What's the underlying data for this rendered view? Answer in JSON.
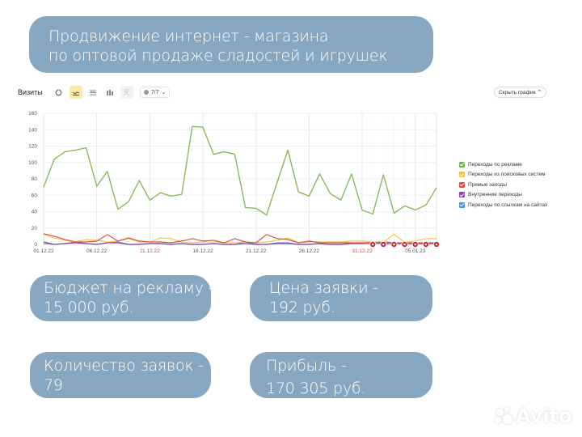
{
  "title": {
    "line1": "Продвижение интернет - магазина",
    "line2": "по оптовой продаже сладостей и игрушек"
  },
  "toolbar": {
    "label": "Визиты",
    "icons": [
      "pie-chart-icon",
      "line-chart-icon",
      "stacked-area-icon",
      "bar-chart-icon",
      "person-icon"
    ],
    "active_icon": "line-chart-icon",
    "series_selector": "7/7"
  },
  "hide_chart_button": "Скрыть график",
  "legend": [
    {
      "label": "Переходы по рекламе",
      "color": "#74b34a"
    },
    {
      "label": "Переходы из поисковых систем",
      "color": "#f2c23c"
    },
    {
      "label": "Прямые заходы",
      "color": "#e14a38"
    },
    {
      "label": "Внутренние переходы",
      "color": "#8a3fb5"
    },
    {
      "label": "Переходы по ссылкам на сайтах",
      "color": "#4a90d9"
    }
  ],
  "stats": {
    "budget": {
      "line1": "Бюджет на рекламу -",
      "line2": "15 000 руб."
    },
    "price": {
      "line1": "Цена заявки -",
      "line2": "192 руб."
    },
    "count": {
      "line1": "Количество заявок -",
      "line2": "79"
    },
    "profit": {
      "line1": "Прибыль -",
      "line2": "170 305 руб."
    }
  },
  "watermark": "Avito",
  "chart_data": {
    "type": "line",
    "title": "Визиты",
    "xlabel": "",
    "ylabel": "",
    "ylim": [
      0,
      160
    ],
    "yticks": [
      0,
      20,
      40,
      60,
      80,
      100,
      120,
      140,
      160
    ],
    "grid": true,
    "legend_position": "right",
    "xtick_labels": [
      {
        "label": "01.12.22",
        "index": 0,
        "weekend": false
      },
      {
        "label": "06.12.22",
        "index": 5,
        "weekend": false
      },
      {
        "label": "11.12.22",
        "index": 10,
        "weekend": true
      },
      {
        "label": "16.12.22",
        "index": 15,
        "weekend": false
      },
      {
        "label": "21.12.22",
        "index": 20,
        "weekend": false
      },
      {
        "label": "26.12.22",
        "index": 25,
        "weekend": false
      },
      {
        "label": "31.12.22",
        "index": 30,
        "weekend": true
      },
      {
        "label": "05.01.23",
        "index": 35,
        "weekend": false
      }
    ],
    "x_count": 38,
    "annotation_markers_indices": [
      31,
      32,
      33,
      34,
      35,
      36,
      37
    ],
    "series": [
      {
        "name": "Переходы по рекламе",
        "color": "#8cb85c",
        "values": [
          70,
          104,
          113,
          115,
          118,
          71,
          89,
          43,
          52,
          78,
          54,
          63,
          59,
          61,
          144,
          143,
          110,
          113,
          110,
          45,
          44,
          36,
          76,
          115,
          64,
          59,
          86,
          62,
          54,
          86,
          42,
          37,
          85,
          38,
          47,
          42,
          48,
          69
        ]
      },
      {
        "name": "Переходы из поисковых систем",
        "color": "#f5c558",
        "values": [
          12,
          8,
          5,
          3,
          6,
          5,
          3,
          4,
          7,
          3,
          3,
          8,
          7,
          3,
          2,
          3,
          3,
          2,
          2,
          3,
          2,
          3,
          5,
          8,
          2,
          3,
          3,
          3,
          3,
          4,
          4,
          3,
          3,
          12,
          3,
          4,
          7,
          7
        ]
      },
      {
        "name": "Прямые заходы",
        "color": "#d9553f",
        "values": [
          13,
          10,
          6,
          3,
          3,
          4,
          12,
          4,
          8,
          4,
          3,
          3,
          2,
          4,
          7,
          4,
          5,
          2,
          7,
          3,
          2,
          12,
          7,
          6,
          2,
          4,
          2,
          2,
          2,
          2,
          2,
          2,
          3,
          2,
          2,
          2,
          2,
          2
        ]
      },
      {
        "name": "Внутренние переходы",
        "color": "#8a3fb5",
        "values": [
          3,
          0,
          1,
          2,
          1,
          0,
          2,
          2,
          0,
          0,
          1,
          1,
          0,
          1,
          0,
          0,
          1,
          0,
          0,
          1,
          0,
          0,
          1,
          1,
          0,
          0,
          1,
          0,
          0,
          1,
          1,
          3,
          1,
          1,
          1,
          1,
          1,
          1
        ]
      },
      {
        "name": "Переходы по ссылкам на сайтах",
        "color": "#6a9ed8",
        "values": [
          1,
          0,
          1,
          3,
          1,
          0,
          2,
          3,
          0,
          0,
          1,
          1,
          0,
          1,
          0,
          0,
          1,
          0,
          0,
          3,
          0,
          0,
          2,
          2,
          0,
          0,
          1,
          0,
          0,
          2,
          1,
          1,
          1,
          1,
          1,
          1,
          1,
          1
        ]
      }
    ]
  }
}
